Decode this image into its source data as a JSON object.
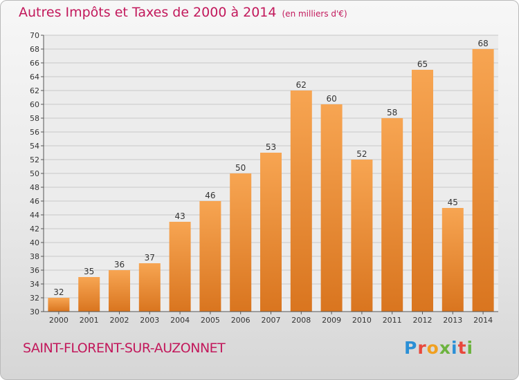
{
  "title": "Autres Impôts et Taxes de 2000 à 2014",
  "subtitle": "(en milliers d'€)",
  "location": "SAINT-FLORENT-SUR-AUZONNET",
  "logo": {
    "text": "Proxiti"
  },
  "chart_data": {
    "type": "bar",
    "title": "Autres Impôts et Taxes de 2000 à 2014",
    "subtitle": "(en milliers d'€)",
    "categories": [
      "2000",
      "2001",
      "2002",
      "2003",
      "2004",
      "2005",
      "2006",
      "2007",
      "2008",
      "2009",
      "2010",
      "2011",
      "2012",
      "2013",
      "2014"
    ],
    "values": [
      32,
      35,
      36,
      37,
      43,
      46,
      50,
      53,
      62,
      60,
      52,
      58,
      65,
      45,
      68
    ],
    "ylim": [
      30,
      70
    ],
    "yticks": [
      30,
      32,
      34,
      36,
      38,
      40,
      42,
      44,
      46,
      48,
      50,
      52,
      54,
      56,
      58,
      60,
      62,
      64,
      66,
      68,
      70
    ],
    "grid": true,
    "colors": {
      "bar_light": "#f7a552",
      "bar_dark": "#d9751f",
      "accent": "#c2185b"
    }
  }
}
